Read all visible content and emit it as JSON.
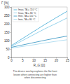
{
  "chart_data": {
    "type": "line",
    "y_label": "Γ [%]",
    "x_label": "R_G [Ω]",
    "annotations": [
      "The device overlap explains the flat front",
      "losses when connecting are higher than",
      "when disconnecting"
    ],
    "x": [
      0,
      5,
      10,
      15,
      20,
      25
    ],
    "series": [
      {
        "name": "fmax, TA = 110 °C",
        "color": "#3fa9d6",
        "values": [
          70,
          112,
          154,
          196,
          236,
          275
        ]
      },
      {
        "name": "fmax, TA = 80 °C",
        "color": "#7cc6e6",
        "values": [
          65,
          100,
          135,
          170,
          202,
          235
        ]
      },
      {
        "name": "fmin, TA = 110 °C",
        "color": "#2b8fbf",
        "values": [
          60,
          74,
          88,
          102,
          115,
          127
        ]
      },
      {
        "name": "fmin, TA = 80 °C",
        "color": "#9fd6ee",
        "values": [
          55,
          65,
          75,
          86,
          96,
          105
        ]
      }
    ],
    "xlim": [
      0,
      25
    ],
    "xticks": [
      0,
      5,
      10,
      15,
      20,
      25
    ],
    "ylim": [
      0,
      300
    ],
    "yticks": [
      0,
      50,
      100,
      150,
      200,
      250,
      300
    ],
    "grid": false,
    "legend": "top-left"
  }
}
